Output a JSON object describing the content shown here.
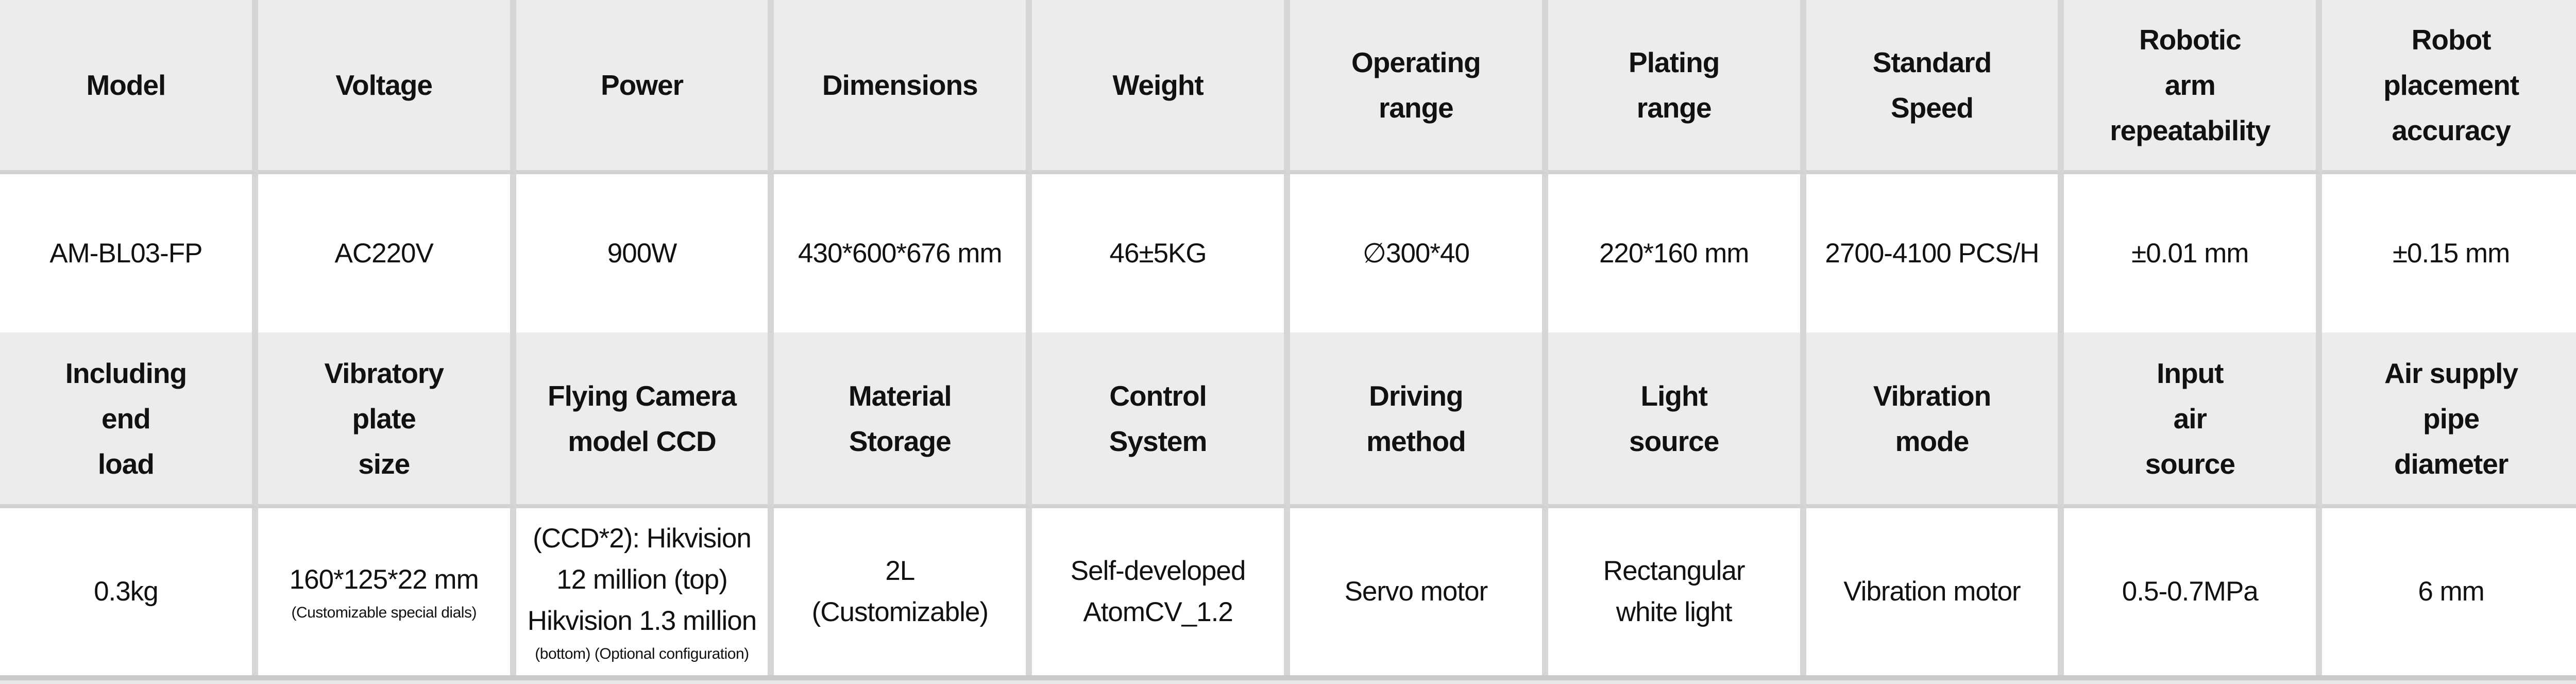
{
  "colors": {
    "header_bg": "#ececec",
    "row_bg": "#ffffff",
    "divider": "#d6d6d6",
    "header_underline": "#d2d2d2",
    "table_bottom_border": "#c9c9c9",
    "page_background": "#e8e8e8",
    "text": "#111111"
  },
  "table": {
    "rows": [
      {
        "type": "header",
        "divider_below": true,
        "cells": [
          {
            "name": "header-model",
            "lines": [
              "Model"
            ]
          },
          {
            "name": "header-voltage",
            "lines": [
              "Voltage"
            ]
          },
          {
            "name": "header-power",
            "lines": [
              "Power"
            ]
          },
          {
            "name": "header-dimensions",
            "lines": [
              "Dimensions"
            ]
          },
          {
            "name": "header-weight",
            "lines": [
              "Weight"
            ]
          },
          {
            "name": "header-operating-range",
            "lines": [
              "Operating",
              "range"
            ]
          },
          {
            "name": "header-plating-range",
            "lines": [
              "Plating",
              "range"
            ]
          },
          {
            "name": "header-standard-speed",
            "lines": [
              "Standard",
              "Speed"
            ]
          },
          {
            "name": "header-robotic-arm-repeatability",
            "lines": [
              "Robotic",
              "arm",
              "repeatability"
            ]
          },
          {
            "name": "header-robot-placement-accuracy",
            "lines": [
              "Robot",
              "placement",
              "accuracy"
            ]
          }
        ]
      },
      {
        "type": "data",
        "divider_below": false,
        "cells": [
          {
            "name": "value-model",
            "lines": [
              "AM-BL03-FP"
            ]
          },
          {
            "name": "value-voltage",
            "lines": [
              "AC220V"
            ]
          },
          {
            "name": "value-power",
            "lines": [
              "900W"
            ]
          },
          {
            "name": "value-dimensions",
            "lines": [
              "430*600*676 mm"
            ]
          },
          {
            "name": "value-weight",
            "lines": [
              "46±5KG"
            ]
          },
          {
            "name": "value-operating-range",
            "lines": [
              "∅300*40"
            ]
          },
          {
            "name": "value-plating-range",
            "lines": [
              "220*160 mm"
            ]
          },
          {
            "name": "value-standard-speed",
            "lines": [
              "2700-4100 PCS/H"
            ]
          },
          {
            "name": "value-robotic-arm-repeatability",
            "lines": [
              "±0.01 mm"
            ]
          },
          {
            "name": "value-robot-placement-accuracy",
            "lines": [
              "±0.15 mm"
            ]
          }
        ]
      },
      {
        "type": "header",
        "divider_below": true,
        "cells": [
          {
            "name": "header-including-end-load",
            "lines": [
              "Including",
              "end",
              "load"
            ]
          },
          {
            "name": "header-vibratory-plate-size",
            "lines": [
              "Vibratory",
              "plate",
              "size"
            ]
          },
          {
            "name": "header-flying-camera-model-ccd",
            "lines": [
              "Flying Camera",
              "model CCD"
            ]
          },
          {
            "name": "header-material-storage",
            "lines": [
              "Material",
              "Storage"
            ]
          },
          {
            "name": "header-control-system",
            "lines": [
              "Control",
              "System"
            ]
          },
          {
            "name": "header-driving-method",
            "lines": [
              "Driving",
              "method"
            ]
          },
          {
            "name": "header-light-source",
            "lines": [
              "Light",
              "source"
            ]
          },
          {
            "name": "header-vibration-mode",
            "lines": [
              "Vibration",
              "mode"
            ]
          },
          {
            "name": "header-input-air-source",
            "lines": [
              "Input",
              "air",
              "source"
            ]
          },
          {
            "name": "header-air-supply-pipe-diameter",
            "lines": [
              "Air supply",
              "pipe",
              "diameter"
            ]
          }
        ]
      },
      {
        "type": "data",
        "divider_below": false,
        "cells": [
          {
            "name": "value-including-end-load",
            "lines": [
              "0.3kg"
            ]
          },
          {
            "name": "value-vibratory-plate-size",
            "lines": [
              "160*125*22 mm"
            ],
            "small": [
              "(Customizable special dials)"
            ]
          },
          {
            "name": "value-flying-camera-model-ccd",
            "lines": [
              "(CCD*2): Hikvision",
              "12 million (top)",
              "Hikvision 1.3 million"
            ],
            "small": [
              "(bottom) (Optional configuration)"
            ]
          },
          {
            "name": "value-material-storage",
            "lines": [
              "2L",
              "(Customizable)"
            ]
          },
          {
            "name": "value-control-system",
            "lines": [
              "Self-developed",
              "AtomCV_1.2"
            ]
          },
          {
            "name": "value-driving-method",
            "lines": [
              "Servo motor"
            ]
          },
          {
            "name": "value-light-source",
            "lines": [
              "Rectangular",
              "white light"
            ]
          },
          {
            "name": "value-vibration-mode",
            "lines": [
              "Vibration motor"
            ]
          },
          {
            "name": "value-input-air-source",
            "lines": [
              "0.5-0.7MPa"
            ]
          },
          {
            "name": "value-air-supply-pipe-diameter",
            "lines": [
              "6 mm"
            ]
          }
        ]
      }
    ]
  }
}
